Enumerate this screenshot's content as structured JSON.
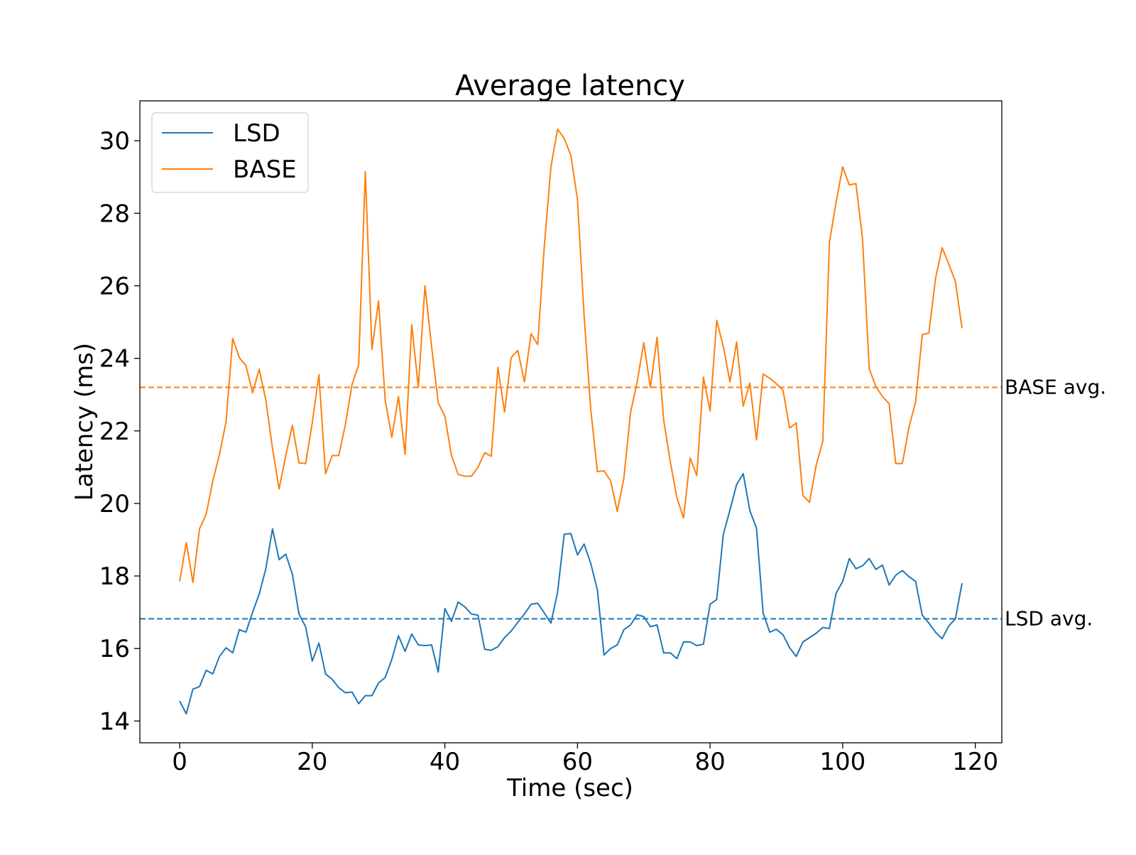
{
  "chart_data": {
    "type": "line",
    "title": "Average latency",
    "xlabel": "Time (sec)",
    "ylabel": "Latency (ms)",
    "xlim": [
      -6,
      124
    ],
    "ylim": [
      13.4,
      31.1
    ],
    "xticks": [
      0,
      20,
      40,
      60,
      80,
      100,
      120
    ],
    "yticks": [
      14,
      16,
      18,
      20,
      22,
      24,
      26,
      28,
      30
    ],
    "grid": false,
    "legend_position": "top-left",
    "x_start": 0,
    "x_step": 1,
    "series": [
      {
        "name": "LSD",
        "color": "#1f77b4",
        "values": [
          14.55,
          14.2,
          14.88,
          14.95,
          15.4,
          15.3,
          15.78,
          16.02,
          15.88,
          16.52,
          16.45,
          17.0,
          17.5,
          18.2,
          19.3,
          18.45,
          18.6,
          18.05,
          16.95,
          16.6,
          15.65,
          16.15,
          15.3,
          15.15,
          14.92,
          14.78,
          14.8,
          14.48,
          14.7,
          14.7,
          15.05,
          15.2,
          15.7,
          16.35,
          15.92,
          16.4,
          16.1,
          16.08,
          16.1,
          15.35,
          17.1,
          16.75,
          17.28,
          17.15,
          16.95,
          16.92,
          15.98,
          15.95,
          16.05,
          16.3,
          16.48,
          16.72,
          16.95,
          17.22,
          17.25,
          16.98,
          16.7,
          17.55,
          19.15,
          19.17,
          18.58,
          18.88,
          18.35,
          17.62,
          15.82,
          16.0,
          16.1,
          16.52,
          16.65,
          16.93,
          16.88,
          16.6,
          16.65,
          15.88,
          15.88,
          15.72,
          16.18,
          16.18,
          16.08,
          16.12,
          17.22,
          17.35,
          19.15,
          19.82,
          20.52,
          20.82,
          19.8,
          19.32,
          16.98,
          16.45,
          16.53,
          16.38,
          16.02,
          15.78,
          16.18,
          16.3,
          16.42,
          16.58,
          16.55,
          17.52,
          17.85,
          18.48,
          18.2,
          18.28,
          18.48,
          18.18,
          18.3,
          17.75,
          18.02,
          18.15,
          17.98,
          17.85,
          16.92,
          16.7,
          16.45,
          16.27,
          16.62,
          16.82,
          17.8
        ]
      },
      {
        "name": "BASE",
        "color": "#ff7f0e",
        "values": [
          17.85,
          18.92,
          17.82,
          19.3,
          19.7,
          20.62,
          21.35,
          22.25,
          24.55,
          24.02,
          23.8,
          23.05,
          23.7,
          22.85,
          21.52,
          20.4,
          21.32,
          22.15,
          21.12,
          21.1,
          22.22,
          23.55,
          20.82,
          21.32,
          21.32,
          22.18,
          23.28,
          23.82,
          29.15,
          24.25,
          25.58,
          22.85,
          21.82,
          22.95,
          21.35,
          24.93,
          23.2,
          26.0,
          24.32,
          22.78,
          22.4,
          21.32,
          20.8,
          20.75,
          20.75,
          21.0,
          21.4,
          21.3,
          23.75,
          22.52,
          24.02,
          24.22,
          23.35,
          24.68,
          24.38,
          27.1,
          29.28,
          30.32,
          30.06,
          29.6,
          28.38,
          25.18,
          22.6,
          20.88,
          20.9,
          20.62,
          19.78,
          20.7,
          22.5,
          23.35,
          24.43,
          23.2,
          24.58,
          22.3,
          21.15,
          20.15,
          19.6,
          21.25,
          20.77,
          23.48,
          22.55,
          25.05,
          24.32,
          23.35,
          24.45,
          22.68,
          23.32,
          21.75,
          23.57,
          23.45,
          23.3,
          23.12,
          22.08,
          22.22,
          20.22,
          20.03,
          21.05,
          21.72,
          27.2,
          28.3,
          29.28,
          28.78,
          28.82,
          27.28,
          23.72,
          23.22,
          22.95,
          22.75,
          21.1,
          21.1,
          22.1,
          22.8,
          24.65,
          24.7,
          26.2,
          27.05,
          26.6,
          26.12,
          24.83
        ]
      }
    ],
    "reference_lines": [
      {
        "label": "BASE avg.",
        "y": 23.2,
        "color": "#ff7f0e",
        "style": "dashed"
      },
      {
        "label": "LSD avg.",
        "y": 16.82,
        "color": "#1f77b4",
        "style": "dashed"
      }
    ]
  }
}
